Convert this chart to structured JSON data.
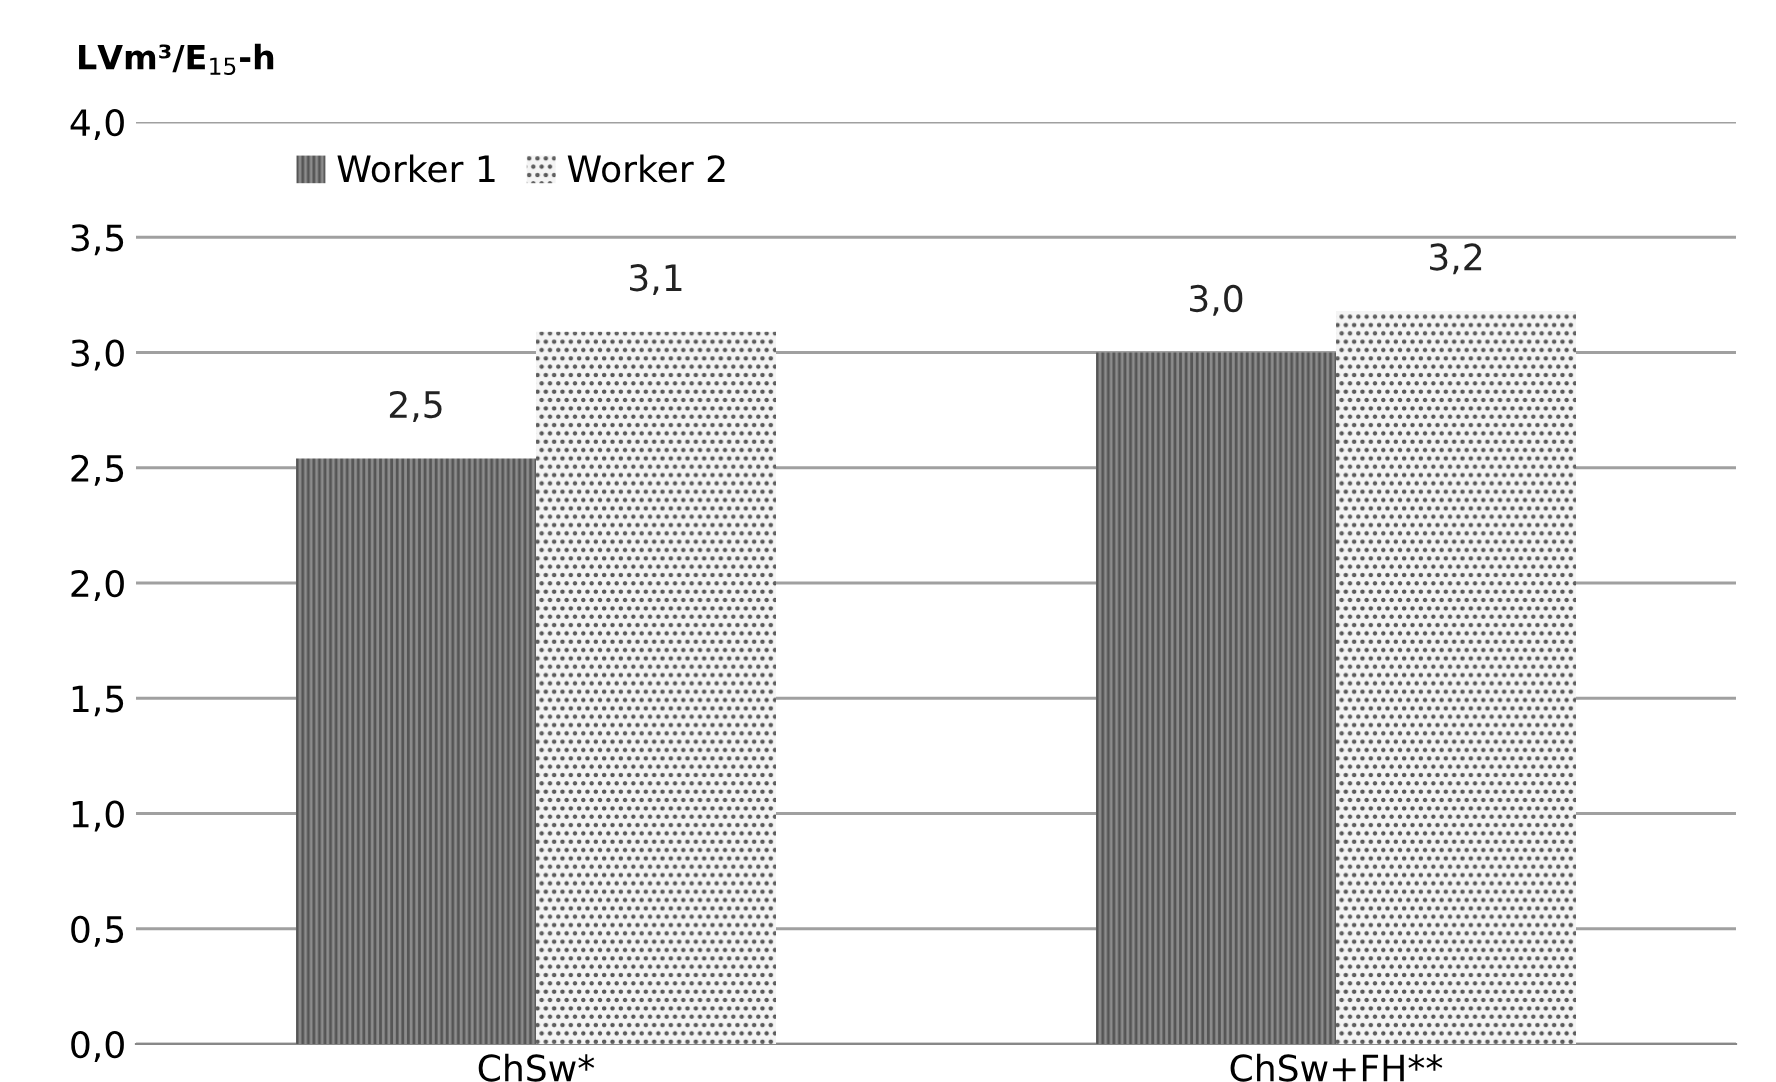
{
  "chart_data": {
    "type": "bar",
    "ylabel": "LVm³/E$_{15}$-h",
    "categories": [
      "ChSw*",
      "ChSw+FH**"
    ],
    "series": [
      {
        "name": "Worker 1",
        "color": "#8c8c8c",
        "values": [
          2.54,
          3.0
        ],
        "value_labels": [
          "2,5",
          "3,0"
        ]
      },
      {
        "name": "Worker 2",
        "color": "#f4f4f4",
        "values": [
          3.09,
          3.18
        ],
        "value_labels": [
          "3,1",
          "3,2"
        ]
      }
    ],
    "ylim": [
      0,
      4
    ],
    "yticks": [
      {
        "value": 0,
        "label": "0,0"
      },
      {
        "value": 0.5,
        "label": "0,5"
      },
      {
        "value": 1,
        "label": "1,0"
      },
      {
        "value": 1.5,
        "label": "1,5"
      },
      {
        "value": 2,
        "label": "2,0"
      },
      {
        "value": 2.5,
        "label": "2,5"
      },
      {
        "value": 3,
        "label": "3,0"
      },
      {
        "value": 3.5,
        "label": "3,5"
      },
      {
        "value": 4,
        "label": "4,0"
      }
    ],
    "grid": "y",
    "legend": "top left"
  }
}
